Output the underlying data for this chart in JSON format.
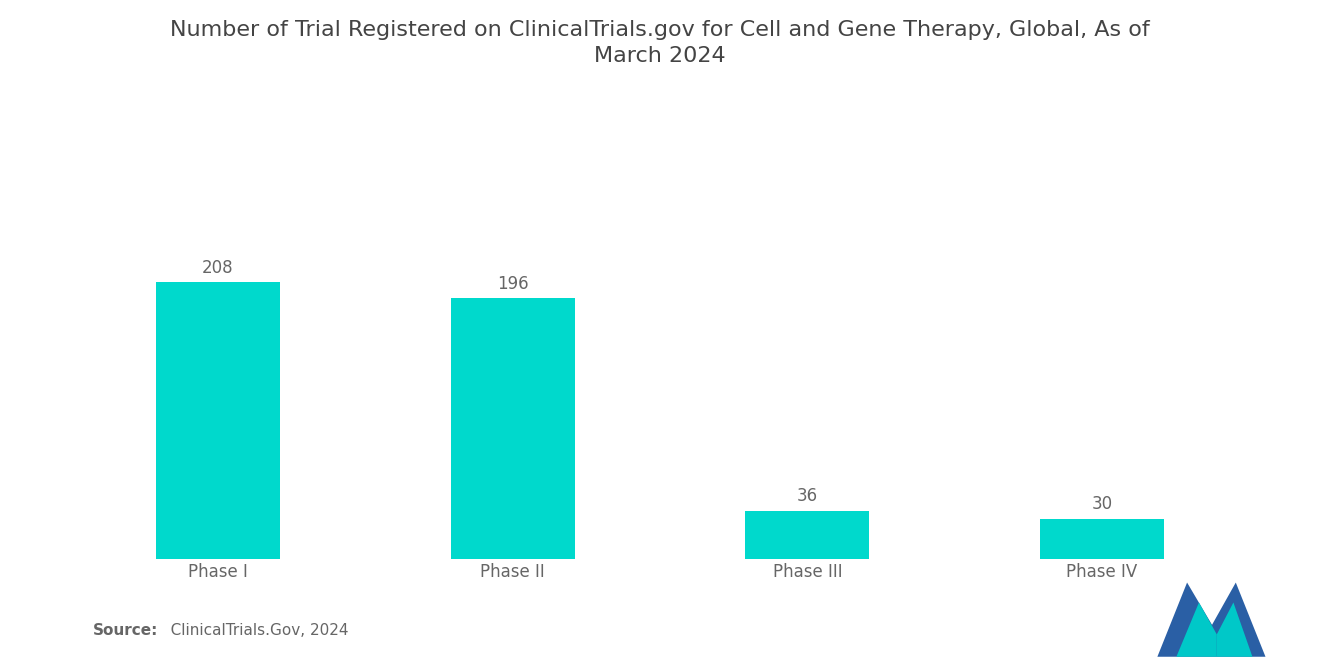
{
  "title": "Number of Trial Registered on ClinicalTrials.gov for Cell and Gene Therapy, Global, As of\nMarch 2024",
  "categories": [
    "Phase I",
    "Phase II",
    "Phase III",
    "Phase IV"
  ],
  "values": [
    208,
    196,
    36,
    30
  ],
  "bar_color": "#00D9CC",
  "value_color": "#666666",
  "label_color": "#666666",
  "title_color": "#444444",
  "background_color": "#ffffff",
  "source_bold": "Source:",
  "source_rest": "   ClinicalTrials.Gov, 2024",
  "ylim": [
    0,
    260
  ],
  "title_fontsize": 16,
  "label_fontsize": 12,
  "value_fontsize": 12,
  "source_fontsize": 11,
  "bar_width": 0.42,
  "logo_blue": "#2A5FA5",
  "logo_teal": "#00C8C8"
}
